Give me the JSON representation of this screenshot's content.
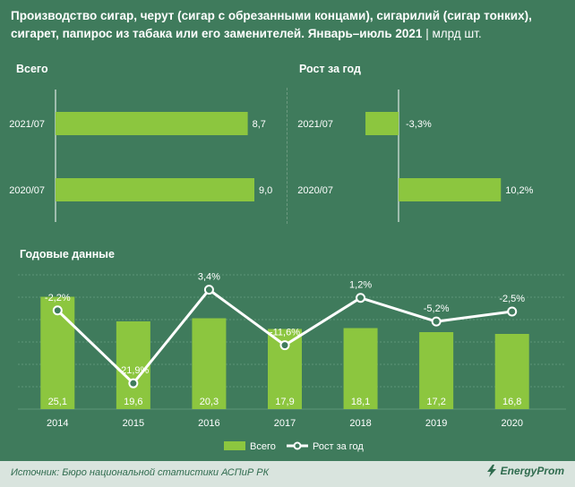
{
  "title": {
    "main": "Производство сигар, черут (сигар с обрезанными концами), сигарилий (сигар тонких), сигарет, папирос из табака или его заменителей. Январь–июль 2021",
    "unit": "| млрд шт."
  },
  "left_panel": {
    "heading": "Всего"
  },
  "right_panel": {
    "heading": "Рост за год"
  },
  "bottom_panel": {
    "heading": "Годовые данные"
  },
  "legend": {
    "bars": "Всего",
    "line": "Рост за год"
  },
  "source": "Источник: Бюро национальной статистики АСПиР РК",
  "logo": "EnergyProm",
  "colors": {
    "background": "#3f7b5c",
    "bar": "#8cc63f",
    "line": "#ffffff",
    "text": "#ffffff"
  },
  "chart_data": [
    {
      "type": "bar",
      "orientation": "horizontal",
      "categories": [
        "2021/07",
        "2020/07"
      ],
      "values": [
        8.7,
        9.0
      ],
      "labels": [
        "8,7",
        "9,0"
      ],
      "title": "Всего"
    },
    {
      "type": "bar",
      "orientation": "horizontal",
      "categories": [
        "2021/07",
        "2020/07"
      ],
      "values": [
        -3.3,
        10.2
      ],
      "labels": [
        "-3,3%",
        "10,2%"
      ],
      "title": "Рост за год"
    },
    {
      "type": "bar+line",
      "title": "Годовые данные",
      "categories": [
        "2014",
        "2015",
        "2016",
        "2017",
        "2018",
        "2019",
        "2020"
      ],
      "series": [
        {
          "name": "Всего",
          "type": "bar",
          "values": [
            25.1,
            19.6,
            20.3,
            17.9,
            18.1,
            17.2,
            16.8
          ],
          "labels": [
            "25,1",
            "19,6",
            "20,3",
            "17,9",
            "18,1",
            "17,2",
            "16,8"
          ]
        },
        {
          "name": "Рост за год",
          "type": "line",
          "values": [
            -2.2,
            -21.9,
            3.4,
            -11.6,
            1.2,
            -5.2,
            -2.5
          ],
          "labels": [
            "-2,2%",
            "-21,9%",
            "3,4%",
            "-11,6%",
            "1,2%",
            "-5,2%",
            "-2,5%"
          ]
        }
      ],
      "grid": true,
      "legend_position": "bottom"
    }
  ]
}
